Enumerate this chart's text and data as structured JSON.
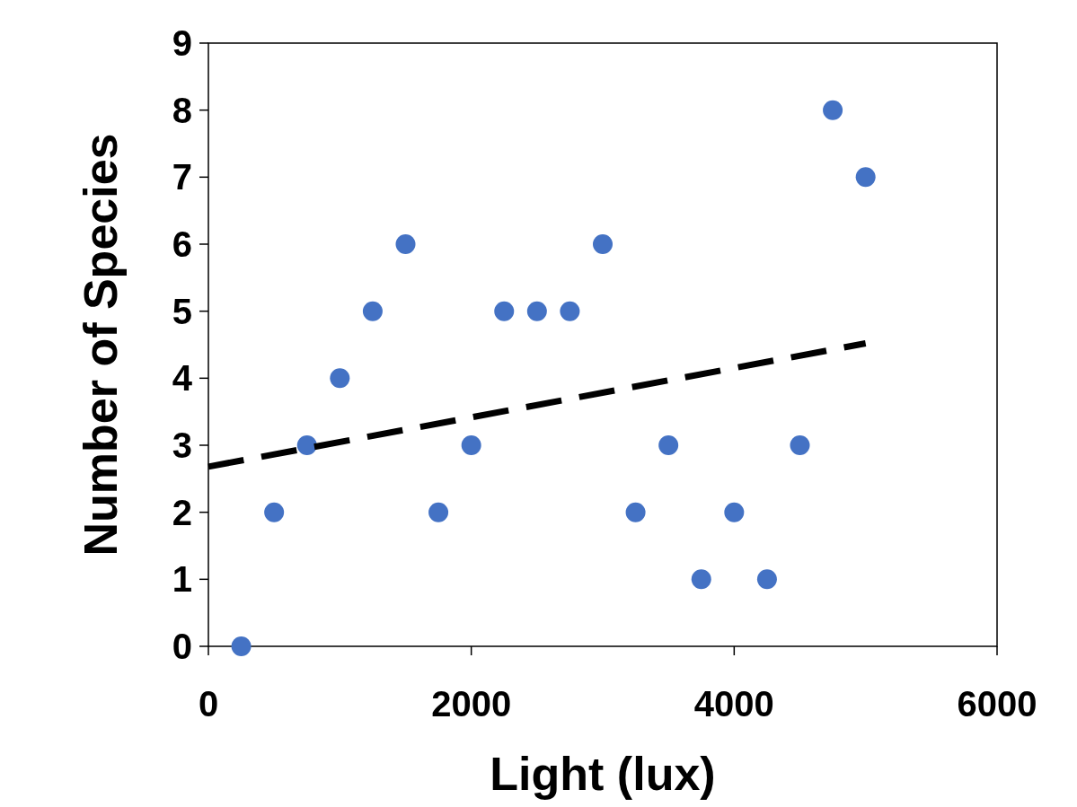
{
  "chart_data": {
    "type": "scatter",
    "xlabel": "Light (lux)",
    "ylabel": "Number of Species",
    "xlim": [
      0,
      6000
    ],
    "xticks": [
      0,
      2000,
      4000,
      6000
    ],
    "ylim": [
      0,
      9
    ],
    "yticks": [
      0,
      1,
      2,
      3,
      4,
      5,
      6,
      7,
      8,
      9
    ],
    "grid": false,
    "series": [
      {
        "color": "#4472c4",
        "marker": "circle",
        "x": [
          250,
          500,
          750,
          1000,
          1250,
          1500,
          1750,
          2000,
          2250,
          2500,
          2750,
          3000,
          3250,
          3500,
          3750,
          4000,
          4250,
          4500,
          4750,
          5000
        ],
        "values": [
          0,
          2,
          3,
          4,
          5,
          6,
          2,
          3,
          5,
          5,
          5,
          6,
          2,
          3,
          1,
          2,
          1,
          3,
          8,
          7
        ]
      },
      {
        "type": "line",
        "color": "#000000",
        "line_style": "dashed",
        "x": [
          0,
          5000
        ],
        "values": [
          2.68,
          4.52
        ]
      }
    ]
  }
}
